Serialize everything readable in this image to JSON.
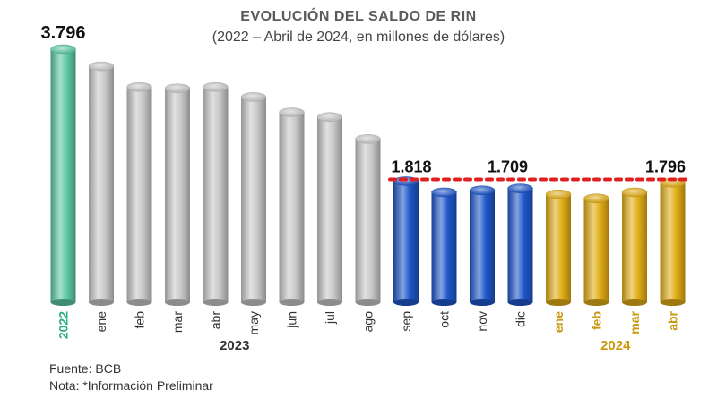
{
  "chart_data": {
    "type": "bar",
    "title": "EVOLUCIÓN DEL SALDO DE RIN",
    "subtitle": "(2022 – Abril de 2024, en millones de dólares)",
    "categories": [
      "2022",
      "ene",
      "feb",
      "mar",
      "abr",
      "may",
      "jun",
      "jul",
      "ago",
      "sep",
      "oct",
      "nov",
      "dic",
      "ene",
      "feb",
      "mar",
      "abr"
    ],
    "values": [
      3796,
      3540,
      3230,
      3210,
      3230,
      3080,
      2850,
      2780,
      2450,
      1818,
      1650,
      1680,
      1709,
      1620,
      1560,
      1650,
      1796
    ],
    "groups": [
      {
        "label": "",
        "start": 0,
        "end": 0,
        "color": "#5cc9a7"
      },
      {
        "label": "2023",
        "start": 1,
        "end": 8,
        "color": "#c8c8c8"
      },
      {
        "label": "",
        "start": 9,
        "end": 12,
        "color": "#1f57c9"
      },
      {
        "label": "2024",
        "start": 13,
        "end": 16,
        "color": "#e1ad16"
      }
    ],
    "data_labels": [
      {
        "index": 0,
        "text": "3.796"
      },
      {
        "index": 9,
        "text": "1.818"
      },
      {
        "index": 12,
        "text": "1.709"
      },
      {
        "index": 16,
        "text": "1.796"
      }
    ],
    "reference_line": {
      "value": 1818,
      "color": "#e02020",
      "style": "dotted"
    },
    "ylim": [
      0,
      3796
    ],
    "xlabel": "",
    "ylabel": "",
    "grid": false,
    "label_colors": {
      "2022": "#2eaf86",
      "2024": "#c9980c",
      "default": "#333333"
    }
  },
  "footer": {
    "source": "Fuente: BCB",
    "note": "Nota: *Información Preliminar"
  }
}
